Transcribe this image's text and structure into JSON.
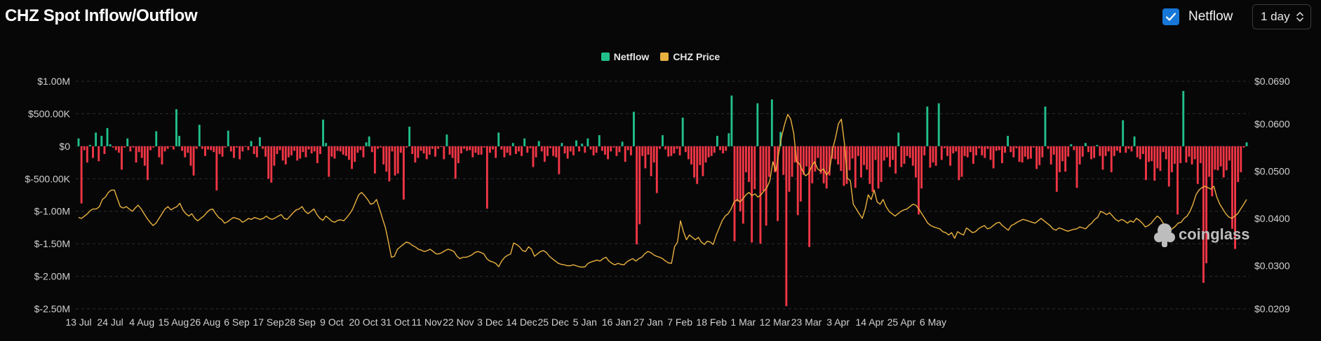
{
  "header": {
    "title": "CHZ Spot Inflow/Outflow",
    "netflow_toggle_label": "Netflow",
    "netflow_checked": true,
    "interval_value": "1 day"
  },
  "legend": [
    {
      "label": "Netflow",
      "color": "#21c08b"
    },
    {
      "label": "CHZ Price",
      "color": "#e9b13e"
    }
  ],
  "watermark": "coinglass",
  "colors": {
    "positive": "#21c08b",
    "negative": "#f23645",
    "price": "#e9b13e",
    "grid": "#2e2e36"
  },
  "chart_data": {
    "type": "bar",
    "title": "",
    "xlabel": "",
    "ylabel": "",
    "x_tick_labels": [
      "13 Jul",
      "24 Jul",
      "4 Aug",
      "15 Aug",
      "26 Aug",
      "6 Sep",
      "17 Sep",
      "28 Sep",
      "9 Oct",
      "20 Oct",
      "31 Oct",
      "11 Nov",
      "22 Nov",
      "3 Dec",
      "14 Dec",
      "25 Dec",
      "5 Jan",
      "16 Jan",
      "27 Jan",
      "7 Feb",
      "18 Feb",
      "1 Mar",
      "12 Mar",
      "23 Mar",
      "3 Apr",
      "14 Apr",
      "25 Apr",
      "6 May"
    ],
    "y_left_ticks": [
      "$1.00M",
      "$500.00K",
      "$0",
      "$-500.00K",
      "$-1.00M",
      "$-1.50M",
      "$-2.00M",
      "$-2.50M"
    ],
    "y_left_range": [
      -2500000,
      1000000
    ],
    "y_right_ticks": [
      "$0.0690",
      "$0.0600",
      "$0.0500",
      "$0.0400",
      "$0.0300",
      "$0.0209"
    ],
    "y_right_range": [
      0.0209,
      0.069
    ],
    "grid": true,
    "legend_position": "top-center",
    "series": [
      {
        "name": "Netflow",
        "axis": "left",
        "start_date": "2023-07-13",
        "values": [
          120000,
          -880000,
          -60000,
          -250000,
          20000,
          -180000,
          210000,
          -230000,
          160000,
          -120000,
          280000,
          30000,
          -20000,
          -60000,
          -100000,
          -360000,
          -20000,
          120000,
          -80000,
          -20000,
          -250000,
          -90000,
          -180000,
          -300000,
          -520000,
          -60000,
          -20000,
          230000,
          -170000,
          -280000,
          -80000,
          -40000,
          -10000,
          -50000,
          570000,
          160000,
          -70000,
          -170000,
          -100000,
          -300000,
          -450000,
          -40000,
          330000,
          -40000,
          -150000,
          -50000,
          -60000,
          -90000,
          -680000,
          -120000,
          -160000,
          -20000,
          240000,
          -80000,
          -180000,
          -20000,
          -200000,
          -80000,
          -10000,
          -60000,
          80000,
          -120000,
          -170000,
          140000,
          -40000,
          -160000,
          -500000,
          -560000,
          -300000,
          -120000,
          -60000,
          -220000,
          -280000,
          -170000,
          -140000,
          -70000,
          -220000,
          -190000,
          -90000,
          -170000,
          -50000,
          -110000,
          -80000,
          -260000,
          -120000,
          410000,
          50000,
          -470000,
          -160000,
          -190000,
          -70000,
          -80000,
          -130000,
          -150000,
          -210000,
          -350000,
          -240000,
          -100000,
          -60000,
          -170000,
          60000,
          150000,
          -90000,
          -420000,
          -40000,
          -20000,
          -280000,
          -390000,
          -540000,
          -80000,
          -450000,
          -420000,
          -100000,
          -820000,
          -20000,
          300000,
          -120000,
          -250000,
          -180000,
          -70000,
          -110000,
          -200000,
          -130000,
          -40000,
          -160000,
          -40000,
          -10000,
          -200000,
          180000,
          -130000,
          -180000,
          -500000,
          -260000,
          -110000,
          -40000,
          -70000,
          -60000,
          -170000,
          -100000,
          -130000,
          -130000,
          -20000,
          -960000,
          -100000,
          -50000,
          -180000,
          210000,
          -50000,
          -170000,
          -100000,
          -140000,
          50000,
          -120000,
          -80000,
          -150000,
          120000,
          -100000,
          -30000,
          -320000,
          -170000,
          80000,
          -80000,
          -240000,
          -150000,
          -30000,
          -150000,
          -170000,
          -430000,
          50000,
          -110000,
          -190000,
          -80000,
          -140000,
          90000,
          -80000,
          40000,
          -100000,
          120000,
          -50000,
          -140000,
          -100000,
          170000,
          -70000,
          -130000,
          -200000,
          -80000,
          -20000,
          -150000,
          -90000,
          70000,
          -240000,
          -60000,
          -140000,
          530000,
          -1510000,
          -1200000,
          -150000,
          -340000,
          -130000,
          -460000,
          -250000,
          -720000,
          -40000,
          170000,
          -50000,
          -160000,
          -150000,
          -110000,
          -40000,
          -140000,
          440000,
          -90000,
          -200000,
          -280000,
          -480000,
          -580000,
          -290000,
          -460000,
          -250000,
          -170000,
          -150000,
          -100000,
          160000,
          -60000,
          -110000,
          -70000,
          200000,
          780000,
          -1460000,
          -850000,
          -1000000,
          -1190000,
          -400000,
          -550000,
          -1480000,
          -660000,
          660000,
          -1500000,
          -690000,
          -1220000,
          -470000,
          720000,
          -400000,
          -1150000,
          220000,
          -440000,
          -2460000,
          -700000,
          -470000,
          -250000,
          -1060000,
          -850000,
          -440000,
          -310000,
          -1550000,
          -570000,
          -390000,
          -180000,
          -420000,
          -570000,
          -650000,
          -450000,
          -190000,
          -200000,
          -280000,
          -380000,
          -610000,
          -580000,
          -370000,
          -190000,
          -640000,
          -150000,
          -480000,
          -290000,
          -360000,
          -580000,
          -700000,
          -210000,
          -650000,
          -550000,
          -220000,
          -170000,
          -320000,
          -210000,
          -420000,
          210000,
          -320000,
          -270000,
          -150000,
          -180000,
          -300000,
          -480000,
          -1050000,
          -650000,
          -140000,
          610000,
          -330000,
          -250000,
          -300000,
          660000,
          -210000,
          -30000,
          -150000,
          -300000,
          -110000,
          -80000,
          -520000,
          -470000,
          -150000,
          -170000,
          -90000,
          -270000,
          -140000,
          -30000,
          -140000,
          -180000,
          -40000,
          -210000,
          -340000,
          -70000,
          -60000,
          -260000,
          -100000,
          160000,
          -90000,
          -170000,
          -30000,
          -240000,
          -250000,
          -160000,
          -200000,
          -190000,
          -20000,
          -350000,
          -290000,
          -170000,
          610000,
          -40000,
          -280000,
          -130000,
          -700000,
          -400000,
          -230000,
          -390000,
          -160000,
          30000,
          -60000,
          -640000,
          -280000,
          -160000,
          50000,
          -90000,
          -200000,
          -180000,
          20000,
          -150000,
          -360000,
          -150000,
          -80000,
          -400000,
          -150000,
          -70000,
          -100000,
          400000,
          -100000,
          -40000,
          -80000,
          150000,
          -170000,
          -200000,
          -120000,
          -520000,
          -240000,
          -230000,
          -530000,
          -340000,
          -380000,
          -90000,
          -200000,
          -620000,
          -400000,
          -270000,
          -1050000,
          -260000,
          850000,
          -250000,
          -160000,
          -280000,
          -200000,
          -580000,
          -260000,
          -2100000,
          -1800000,
          -470000,
          -770000,
          -360000,
          -370000,
          -310000,
          -480000,
          -370000,
          -220000,
          -1270000,
          -1580000,
          -550000,
          -400000,
          -20000,
          60000
        ]
      },
      {
        "name": "CHZ Price",
        "axis": "right",
        "start_date": "2023-07-13",
        "values": [
          0.0402,
          0.04,
          0.0405,
          0.041,
          0.0417,
          0.042,
          0.042,
          0.0425,
          0.044,
          0.0445,
          0.0455,
          0.046,
          0.046,
          0.0442,
          0.0425,
          0.0422,
          0.0425,
          0.042,
          0.0415,
          0.0422,
          0.0428,
          0.042,
          0.041,
          0.04,
          0.0392,
          0.0385,
          0.039,
          0.04,
          0.041,
          0.042,
          0.0425,
          0.0418,
          0.0422,
          0.0425,
          0.0432,
          0.0418,
          0.041,
          0.0405,
          0.041,
          0.04,
          0.0395,
          0.04,
          0.0405,
          0.0412,
          0.0418,
          0.042,
          0.041,
          0.0402,
          0.0398,
          0.039,
          0.0393,
          0.0398,
          0.0402,
          0.04,
          0.0398,
          0.0392,
          0.0395,
          0.04,
          0.0398,
          0.0402,
          0.04,
          0.0398,
          0.04,
          0.0405,
          0.04,
          0.0398,
          0.0401,
          0.0405,
          0.0408,
          0.04,
          0.0398,
          0.0405,
          0.0412,
          0.0418,
          0.042,
          0.0425,
          0.0415,
          0.041,
          0.0415,
          0.042,
          0.0408,
          0.04,
          0.0396,
          0.0405,
          0.04,
          0.0394,
          0.0392,
          0.0396,
          0.0397,
          0.0395,
          0.0402,
          0.041,
          0.042,
          0.0435,
          0.045,
          0.0455,
          0.0448,
          0.044,
          0.043,
          0.0432,
          0.044,
          0.042,
          0.04,
          0.038,
          0.035,
          0.0318,
          0.032,
          0.0335,
          0.034,
          0.0345,
          0.035,
          0.0348,
          0.0343,
          0.034,
          0.0335,
          0.0333,
          0.033,
          0.0332,
          0.0335,
          0.033,
          0.0325,
          0.0325,
          0.0328,
          0.0332,
          0.0335,
          0.0333,
          0.033,
          0.032,
          0.0315,
          0.0318,
          0.0318,
          0.032,
          0.0323,
          0.0328,
          0.033,
          0.0328,
          0.0325,
          0.0315,
          0.031,
          0.0308,
          0.0305,
          0.0298,
          0.031,
          0.0318,
          0.0322,
          0.0325,
          0.0348,
          0.0345,
          0.034,
          0.0332,
          0.033,
          0.034,
          0.0335,
          0.032,
          0.0325,
          0.033,
          0.0332,
          0.0328,
          0.032,
          0.0315,
          0.031,
          0.0305,
          0.0303,
          0.0302,
          0.03,
          0.03,
          0.0302,
          0.03,
          0.0298,
          0.0297,
          0.0298,
          0.0305,
          0.0308,
          0.031,
          0.0312,
          0.031,
          0.0315,
          0.0318,
          0.031,
          0.0305,
          0.0302,
          0.0305,
          0.0303,
          0.0302,
          0.0308,
          0.0312,
          0.0315,
          0.031,
          0.0315,
          0.0318,
          0.0325,
          0.033,
          0.0328,
          0.0323,
          0.032,
          0.0318,
          0.0315,
          0.031,
          0.0306,
          0.0305,
          0.034,
          0.035,
          0.0395,
          0.0372,
          0.0355,
          0.0365,
          0.036,
          0.0355,
          0.036,
          0.035,
          0.0345,
          0.0352,
          0.035,
          0.0345,
          0.0365,
          0.038,
          0.0395,
          0.0405,
          0.041,
          0.042,
          0.0435,
          0.044,
          0.0435,
          0.0442,
          0.045,
          0.0455,
          0.0448,
          0.0452,
          0.0445,
          0.045,
          0.0458,
          0.0465,
          0.048,
          0.052,
          0.05,
          0.054,
          0.0575,
          0.06,
          0.062,
          0.061,
          0.058,
          0.052,
          0.0515,
          0.05,
          0.049,
          0.0495,
          0.051,
          0.052,
          0.0505,
          0.05,
          0.0505,
          0.0492,
          0.05,
          0.0545,
          0.057,
          0.06,
          0.061,
          0.056,
          0.0485,
          0.048,
          0.043,
          0.042,
          0.041,
          0.04,
          0.042,
          0.045,
          0.044,
          0.046,
          0.0435,
          0.043,
          0.044,
          0.0425,
          0.0415,
          0.041,
          0.0405,
          0.041,
          0.0415,
          0.0418,
          0.042,
          0.0425,
          0.043,
          0.0428,
          0.042,
          0.041,
          0.04,
          0.039,
          0.0385,
          0.0382,
          0.038,
          0.0378,
          0.0372,
          0.037,
          0.0365,
          0.037,
          0.0358,
          0.0372,
          0.0368,
          0.0365,
          0.038,
          0.0375,
          0.037,
          0.0372,
          0.0378,
          0.0382,
          0.0385,
          0.0378,
          0.038,
          0.0385,
          0.039,
          0.0392,
          0.0385,
          0.038,
          0.0375,
          0.0385,
          0.0388,
          0.0392,
          0.0395,
          0.0398,
          0.0396,
          0.0394,
          0.0392,
          0.039,
          0.0395,
          0.04,
          0.0395,
          0.039,
          0.0385,
          0.0378,
          0.0375,
          0.038,
          0.0378,
          0.0375,
          0.0373,
          0.0375,
          0.0377,
          0.0378,
          0.0382,
          0.038,
          0.0378,
          0.0385,
          0.039,
          0.0398,
          0.0402,
          0.0415,
          0.0412,
          0.0408,
          0.0412,
          0.0405,
          0.0398,
          0.0394,
          0.0398,
          0.0395,
          0.039,
          0.0395,
          0.0392,
          0.04,
          0.0396,
          0.039,
          0.0382,
          0.0385,
          0.039,
          0.0398,
          0.0405,
          0.04,
          0.039,
          0.038,
          0.0375,
          0.0378,
          0.0383,
          0.039,
          0.0392,
          0.04,
          0.0405,
          0.0415,
          0.043,
          0.045,
          0.046,
          0.0465,
          0.0468,
          0.0465,
          0.0462,
          0.0468,
          0.0445,
          0.043,
          0.042,
          0.041,
          0.0403,
          0.04,
          0.0405,
          0.041,
          0.042,
          0.043,
          0.044
        ]
      }
    ]
  }
}
